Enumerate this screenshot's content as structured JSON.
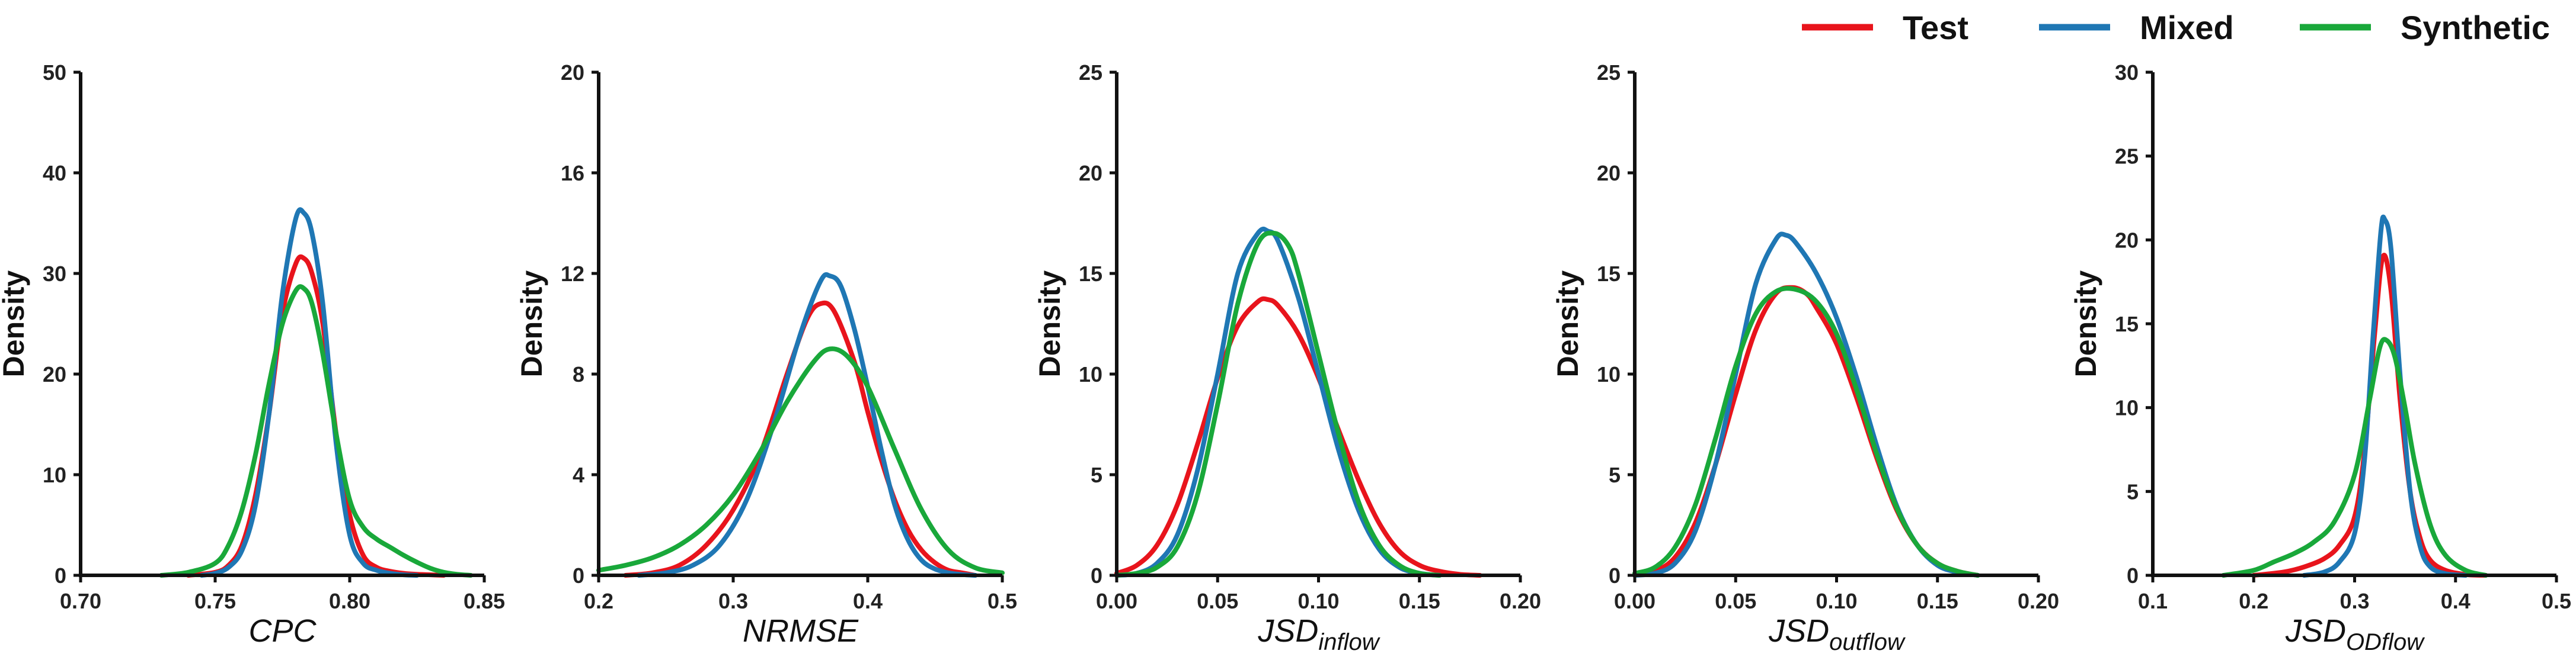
{
  "legend": [
    {
      "label": "Test",
      "color": "#e8141c"
    },
    {
      "label": "Mixed",
      "color": "#1f77b4"
    },
    {
      "label": "Synthetic",
      "color": "#19a83a"
    }
  ],
  "chart_data": [
    {
      "type": "line",
      "title": "",
      "xlabel": "CPC",
      "xlabel_sub": "",
      "ylabel": "Density",
      "xlim": [
        0.7,
        0.85
      ],
      "ylim": [
        0,
        50
      ],
      "xticks": [
        "0.70",
        "0.75",
        "0.80",
        "0.85"
      ],
      "yticks": [
        "0",
        "10",
        "20",
        "30",
        "40",
        "50"
      ],
      "series": [
        {
          "name": "Test",
          "x": [
            0.74,
            0.75,
            0.755,
            0.76,
            0.765,
            0.77,
            0.775,
            0.78,
            0.783,
            0.786,
            0.79,
            0.795,
            0.8,
            0.805,
            0.81,
            0.815,
            0.82,
            0.825,
            0.83,
            0.835
          ],
          "y": [
            0.0,
            0.3,
            1.0,
            3.0,
            8.0,
            16.0,
            26.0,
            31.0,
            31.5,
            30.0,
            25.0,
            14.0,
            6.0,
            2.0,
            0.8,
            0.4,
            0.2,
            0.1,
            0.05,
            0.0
          ]
        },
        {
          "name": "Mixed",
          "x": [
            0.745,
            0.75,
            0.755,
            0.76,
            0.765,
            0.77,
            0.775,
            0.78,
            0.783,
            0.786,
            0.79,
            0.795,
            0.8,
            0.805,
            0.81,
            0.815,
            0.82,
            0.825
          ],
          "y": [
            0.0,
            0.2,
            0.8,
            2.5,
            7.0,
            16.0,
            28.0,
            35.5,
            36.0,
            34.0,
            27.0,
            13.0,
            4.0,
            1.2,
            0.5,
            0.2,
            0.05,
            0.0
          ]
        },
        {
          "name": "Synthetic",
          "x": [
            0.73,
            0.74,
            0.75,
            0.755,
            0.76,
            0.765,
            0.77,
            0.775,
            0.78,
            0.783,
            0.786,
            0.79,
            0.795,
            0.8,
            0.805,
            0.81,
            0.815,
            0.82,
            0.825,
            0.83,
            0.835,
            0.84,
            0.845
          ],
          "y": [
            0.0,
            0.3,
            1.2,
            3.0,
            6.5,
            12.0,
            19.0,
            25.0,
            28.3,
            28.5,
            27.0,
            22.0,
            14.0,
            7.5,
            4.8,
            3.6,
            2.8,
            2.0,
            1.3,
            0.7,
            0.3,
            0.1,
            0.0
          ]
        }
      ]
    },
    {
      "type": "line",
      "title": "",
      "xlabel": "NRMSE",
      "xlabel_sub": "",
      "ylabel": "Density",
      "xlim": [
        0.2,
        0.5
      ],
      "ylim": [
        0,
        20
      ],
      "xticks": [
        "0.2",
        "0.3",
        "0.4",
        "0.5"
      ],
      "yticks": [
        "0",
        "4",
        "8",
        "12",
        "16",
        "20"
      ],
      "series": [
        {
          "name": "Test",
          "x": [
            0.22,
            0.24,
            0.26,
            0.28,
            0.3,
            0.32,
            0.34,
            0.355,
            0.365,
            0.375,
            0.39,
            0.4,
            0.41,
            0.42,
            0.43,
            0.44,
            0.45,
            0.46,
            0.47,
            0.48
          ],
          "y": [
            0.0,
            0.1,
            0.4,
            1.2,
            2.6,
            4.8,
            8.0,
            10.2,
            10.8,
            10.5,
            8.5,
            6.5,
            4.6,
            3.0,
            1.8,
            1.0,
            0.5,
            0.2,
            0.1,
            0.0
          ]
        },
        {
          "name": "Mixed",
          "x": [
            0.23,
            0.25,
            0.27,
            0.29,
            0.31,
            0.33,
            0.35,
            0.365,
            0.372,
            0.38,
            0.39,
            0.4,
            0.41,
            0.42,
            0.43,
            0.44,
            0.45,
            0.46,
            0.47,
            0.48
          ],
          "y": [
            0.0,
            0.1,
            0.4,
            1.2,
            3.0,
            6.0,
            9.6,
            11.7,
            11.9,
            11.5,
            9.8,
            7.5,
            5.0,
            2.8,
            1.4,
            0.6,
            0.25,
            0.1,
            0.03,
            0.0
          ]
        },
        {
          "name": "Synthetic",
          "x": [
            0.2,
            0.22,
            0.24,
            0.26,
            0.28,
            0.3,
            0.32,
            0.34,
            0.36,
            0.372,
            0.385,
            0.4,
            0.42,
            0.44,
            0.46,
            0.48,
            0.5
          ],
          "y": [
            0.2,
            0.4,
            0.7,
            1.2,
            2.0,
            3.2,
            4.9,
            6.9,
            8.5,
            9.0,
            8.7,
            7.5,
            5.0,
            2.6,
            1.0,
            0.3,
            0.1
          ]
        }
      ]
    },
    {
      "type": "line",
      "title": "",
      "xlabel": "JSD",
      "xlabel_sub": "inflow",
      "ylabel": "Density",
      "xlim": [
        0.0,
        0.2
      ],
      "ylim": [
        0,
        25
      ],
      "xticks": [
        "0.00",
        "0.05",
        "0.10",
        "0.15",
        "0.20"
      ],
      "yticks": [
        "0",
        "5",
        "10",
        "15",
        "20",
        "25"
      ],
      "series": [
        {
          "name": "Test",
          "x": [
            0.0,
            0.01,
            0.02,
            0.03,
            0.04,
            0.05,
            0.06,
            0.07,
            0.075,
            0.08,
            0.09,
            0.1,
            0.11,
            0.12,
            0.13,
            0.14,
            0.15,
            0.16,
            0.17,
            0.18
          ],
          "y": [
            0.1,
            0.5,
            1.5,
            3.5,
            6.5,
            9.8,
            12.4,
            13.6,
            13.7,
            13.4,
            12.0,
            9.8,
            7.2,
            4.7,
            2.6,
            1.2,
            0.5,
            0.2,
            0.05,
            0.0
          ]
        },
        {
          "name": "Mixed",
          "x": [
            0.0,
            0.01,
            0.02,
            0.03,
            0.04,
            0.05,
            0.06,
            0.07,
            0.075,
            0.08,
            0.09,
            0.1,
            0.11,
            0.12,
            0.13,
            0.14,
            0.15,
            0.16
          ],
          "y": [
            0.0,
            0.1,
            0.6,
            2.0,
            5.2,
            10.0,
            15.0,
            17.0,
            17.1,
            16.6,
            13.8,
            10.0,
            6.2,
            3.2,
            1.3,
            0.4,
            0.1,
            0.0
          ]
        },
        {
          "name": "Synthetic",
          "x": [
            0.0,
            0.01,
            0.02,
            0.03,
            0.04,
            0.05,
            0.06,
            0.07,
            0.078,
            0.085,
            0.09,
            0.1,
            0.11,
            0.12,
            0.13,
            0.14,
            0.15,
            0.16
          ],
          "y": [
            0.0,
            0.1,
            0.4,
            1.4,
            4.0,
            8.5,
            13.5,
            16.5,
            17.0,
            16.4,
            15.0,
            11.0,
            7.0,
            3.6,
            1.5,
            0.5,
            0.1,
            0.0
          ]
        }
      ]
    },
    {
      "type": "line",
      "title": "",
      "xlabel": "JSD",
      "xlabel_sub": "outflow",
      "ylabel": "Density",
      "xlim": [
        0.0,
        0.2
      ],
      "ylim": [
        0,
        25
      ],
      "xticks": [
        "0.00",
        "0.05",
        "0.10",
        "0.15",
        "0.20"
      ],
      "yticks": [
        "0",
        "5",
        "10",
        "15",
        "20",
        "25"
      ],
      "series": [
        {
          "name": "Test",
          "x": [
            0.0,
            0.01,
            0.02,
            0.03,
            0.04,
            0.05,
            0.06,
            0.07,
            0.078,
            0.085,
            0.09,
            0.1,
            0.11,
            0.12,
            0.13,
            0.14,
            0.15,
            0.16,
            0.17
          ],
          "y": [
            0.0,
            0.2,
            0.9,
            2.6,
            5.5,
            9.0,
            12.2,
            14.0,
            14.3,
            14.0,
            13.3,
            11.5,
            8.8,
            5.8,
            3.2,
            1.5,
            0.6,
            0.2,
            0.0
          ]
        },
        {
          "name": "Mixed",
          "x": [
            0.0,
            0.01,
            0.02,
            0.03,
            0.04,
            0.05,
            0.06,
            0.07,
            0.075,
            0.08,
            0.09,
            0.1,
            0.11,
            0.12,
            0.13,
            0.14,
            0.15,
            0.16,
            0.17
          ],
          "y": [
            0.0,
            0.1,
            0.6,
            2.2,
            5.5,
            10.0,
            14.5,
            16.7,
            16.9,
            16.5,
            15.0,
            12.8,
            9.8,
            6.4,
            3.4,
            1.5,
            0.5,
            0.15,
            0.0
          ]
        },
        {
          "name": "Synthetic",
          "x": [
            0.0,
            0.01,
            0.02,
            0.03,
            0.04,
            0.05,
            0.06,
            0.07,
            0.08,
            0.09,
            0.1,
            0.11,
            0.12,
            0.13,
            0.14,
            0.15,
            0.16,
            0.17
          ],
          "y": [
            0.1,
            0.4,
            1.4,
            3.5,
            6.8,
            10.4,
            13.0,
            14.1,
            14.2,
            13.6,
            12.0,
            9.2,
            6.0,
            3.3,
            1.5,
            0.6,
            0.2,
            0.0
          ]
        }
      ]
    },
    {
      "type": "line",
      "title": "",
      "xlabel": "JSD",
      "xlabel_sub": "ODflow",
      "ylabel": "Density",
      "xlim": [
        0.1,
        0.5
      ],
      "ylim": [
        0,
        30
      ],
      "xticks": [
        "0.1",
        "0.2",
        "0.3",
        "0.4",
        "0.5"
      ],
      "yticks": [
        "0",
        "5",
        "10",
        "15",
        "20",
        "25",
        "30"
      ],
      "series": [
        {
          "name": "Test",
          "x": [
            0.2,
            0.23,
            0.25,
            0.27,
            0.285,
            0.3,
            0.31,
            0.32,
            0.328,
            0.336,
            0.345,
            0.355,
            0.365,
            0.375,
            0.39,
            0.41,
            0.43
          ],
          "y": [
            0.0,
            0.2,
            0.5,
            1.0,
            1.8,
            3.5,
            7.5,
            14.5,
            19.0,
            17.0,
            10.5,
            5.0,
            2.2,
            0.9,
            0.3,
            0.05,
            0.0
          ]
        },
        {
          "name": "Mixed",
          "x": [
            0.25,
            0.27,
            0.285,
            0.3,
            0.31,
            0.318,
            0.326,
            0.33,
            0.336,
            0.345,
            0.355,
            0.365,
            0.375,
            0.39,
            0.41
          ],
          "y": [
            0.0,
            0.2,
            0.8,
            2.5,
            7.0,
            14.0,
            20.5,
            21.2,
            19.5,
            12.0,
            5.0,
            1.7,
            0.5,
            0.1,
            0.0
          ]
        },
        {
          "name": "Synthetic",
          "x": [
            0.17,
            0.2,
            0.22,
            0.24,
            0.26,
            0.28,
            0.3,
            0.315,
            0.325,
            0.332,
            0.34,
            0.35,
            0.36,
            0.375,
            0.39,
            0.41,
            0.43
          ],
          "y": [
            0.0,
            0.3,
            0.8,
            1.3,
            2.0,
            3.2,
            6.0,
            10.5,
            13.6,
            14.0,
            13.0,
            10.0,
            6.6,
            3.0,
            1.2,
            0.3,
            0.0
          ]
        }
      ]
    }
  ]
}
